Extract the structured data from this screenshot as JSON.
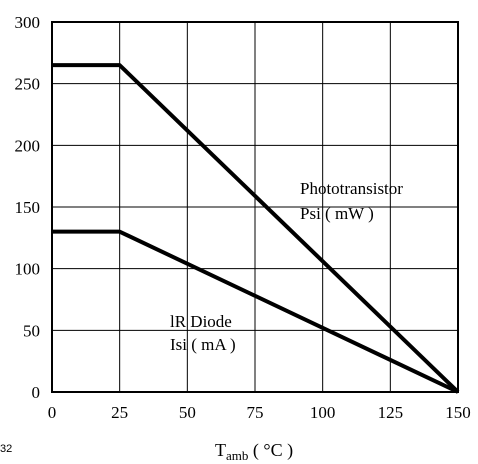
{
  "chart_data": {
    "type": "line",
    "title": "",
    "xlabel": {
      "main": "T",
      "sub": "amb",
      "unit": " ( °C )"
    },
    "ylabel": "",
    "xlim": [
      0,
      150
    ],
    "ylim": [
      0,
      300
    ],
    "xticks": [
      0,
      25,
      50,
      75,
      100,
      125,
      150
    ],
    "yticks": [
      0,
      50,
      100,
      150,
      200,
      250,
      300
    ],
    "grid": true,
    "series": [
      {
        "name": "Phototransistor Psi ( mW )",
        "label_lines": [
          "Phototransistor",
          "Psi ( mW )"
        ],
        "x": [
          0,
          25,
          150
        ],
        "y": [
          265,
          265,
          0
        ]
      },
      {
        "name": "IR Diode Isi ( mA )",
        "label_lines": [
          "lR Diode",
          "Isi ( mA )"
        ],
        "x": [
          0,
          25,
          150
        ],
        "y": [
          130,
          130,
          0
        ]
      }
    ]
  },
  "figure_id": "32"
}
